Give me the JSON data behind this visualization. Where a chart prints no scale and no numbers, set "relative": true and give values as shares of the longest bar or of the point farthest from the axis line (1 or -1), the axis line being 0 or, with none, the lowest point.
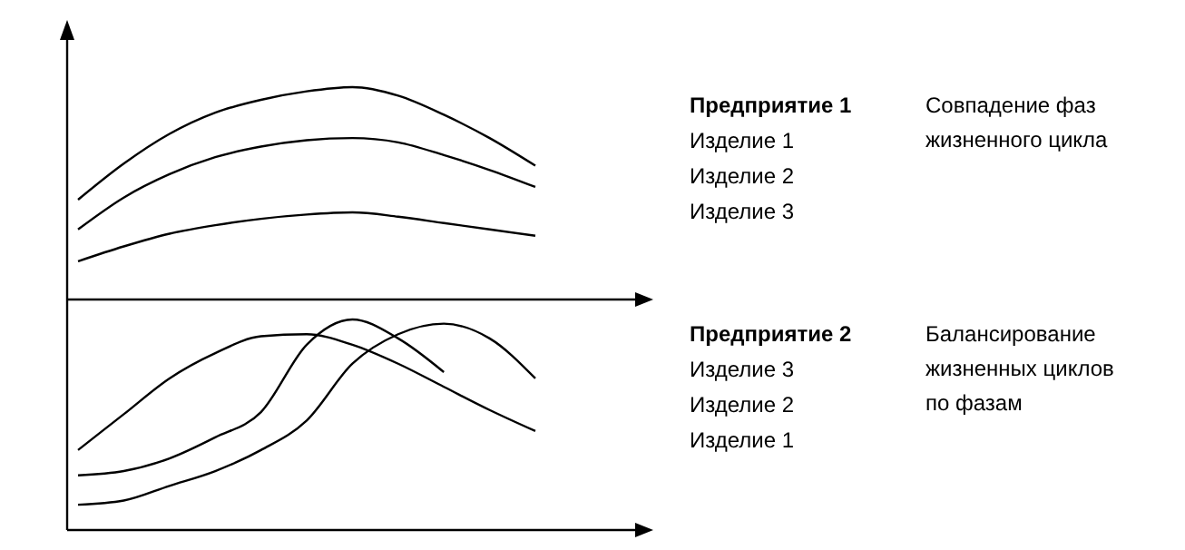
{
  "chart_data": [
    {
      "type": "line",
      "relative": true,
      "annotations": [
        "Предприятие 1",
        "Изделие 1",
        "Изделие 2",
        "Изделие 3",
        "Совпадение фаз\nжизненного цикла"
      ],
      "categories": [
        null,
        null,
        null,
        null,
        null,
        null,
        null,
        null,
        null,
        null,
        null
      ],
      "line_style": "solid",
      "series": [
        {
          "color": "#000000",
          "values": [
            0.47,
            0.64,
            0.78,
            0.88,
            0.94,
            0.98,
            1.0,
            0.96,
            0.87,
            0.76,
            0.63
          ]
        },
        {
          "color": "#000000",
          "values": [
            0.33,
            0.48,
            0.59,
            0.67,
            0.72,
            0.75,
            0.76,
            0.74,
            0.68,
            0.61,
            0.53
          ]
        },
        {
          "color": "#000000",
          "values": [
            0.18,
            0.25,
            0.31,
            0.35,
            0.38,
            0.4,
            0.41,
            0.39,
            0.36,
            0.33,
            0.3
          ]
        }
      ]
    },
    {
      "type": "line",
      "relative": true,
      "annotations": [
        "Предприятие 2",
        "Изделие 3",
        "Изделие 2",
        "Изделие 1",
        "Балансирование\nжизненных циклов\nпо фазам"
      ],
      "categories": [
        null,
        null,
        null,
        null,
        null,
        null,
        null,
        null,
        null,
        null,
        null
      ],
      "line_style": "solid",
      "series": [
        {
          "color": "#000000",
          "values": [
            0.38,
            0.55,
            0.72,
            0.84,
            0.92,
            0.93,
            0.88,
            0.79,
            0.68,
            0.57,
            0.47
          ]
        },
        {
          "color": "#000000",
          "values": [
            0.26,
            0.28,
            0.34,
            0.44,
            0.56,
            0.88,
            1.0,
            0.91,
            0.75,
            null,
            null
          ]
        },
        {
          "color": "#000000",
          "values": [
            0.12,
            0.14,
            0.21,
            0.28,
            0.38,
            0.52,
            0.79,
            0.93,
            0.98,
            0.91,
            0.72
          ]
        }
      ]
    }
  ]
}
